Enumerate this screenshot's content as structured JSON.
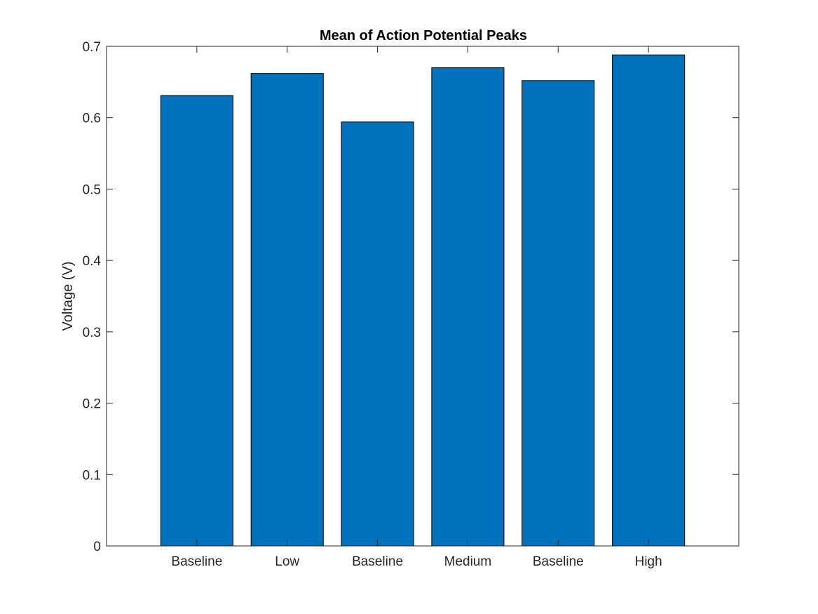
{
  "chart_data": {
    "type": "bar",
    "title": "Mean of Action Potential Peaks",
    "xlabel": "",
    "ylabel": "Voltage (V)",
    "categories": [
      "Baseline",
      "Low",
      "Baseline",
      "Medium",
      "Baseline",
      "High"
    ],
    "values": [
      0.631,
      0.662,
      0.594,
      0.67,
      0.652,
      0.688
    ],
    "ylim": [
      0,
      0.7
    ],
    "yticks": [
      "0",
      "0.1",
      "0.2",
      "0.3",
      "0.4",
      "0.5",
      "0.6",
      "0.7"
    ],
    "ytick_values": [
      0,
      0.1,
      0.2,
      0.3,
      0.4,
      0.5,
      0.6,
      0.7
    ],
    "grid": false,
    "colors": {
      "bar": "#0072BD",
      "bar_edge": "#000000",
      "axis": "#262626"
    }
  }
}
